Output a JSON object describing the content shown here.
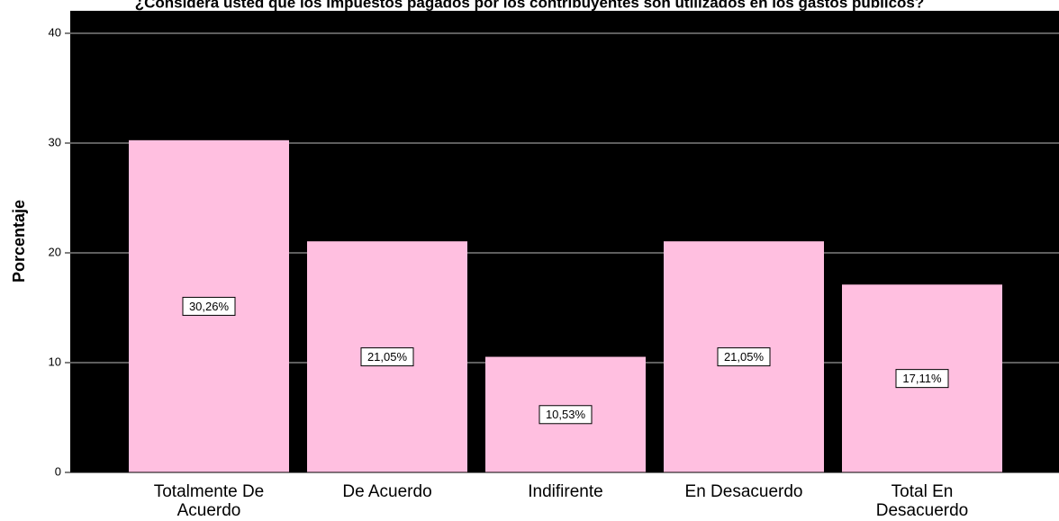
{
  "chart_data": {
    "type": "bar",
    "title": "¿Considera usted que los impuestos pagados por los contribuyentes son utilizados en los gastos públicos?",
    "y_label": "Porcentaje",
    "categories": [
      "Totalmente De Acuerdo",
      "De Acuerdo",
      "Indifirente",
      "En Desacuerdo",
      "Total En Desacuerdo"
    ],
    "values": [
      30.26,
      21.05,
      10.53,
      21.05,
      17.11
    ],
    "value_labels": [
      "30,26%",
      "21,05%",
      "10,53%",
      "21,05%",
      "17,11%"
    ],
    "color": "#ffbfe0",
    "ylim": [
      0,
      40
    ],
    "yticks": [
      0,
      10,
      20,
      30,
      40
    ],
    "grid": true
  }
}
